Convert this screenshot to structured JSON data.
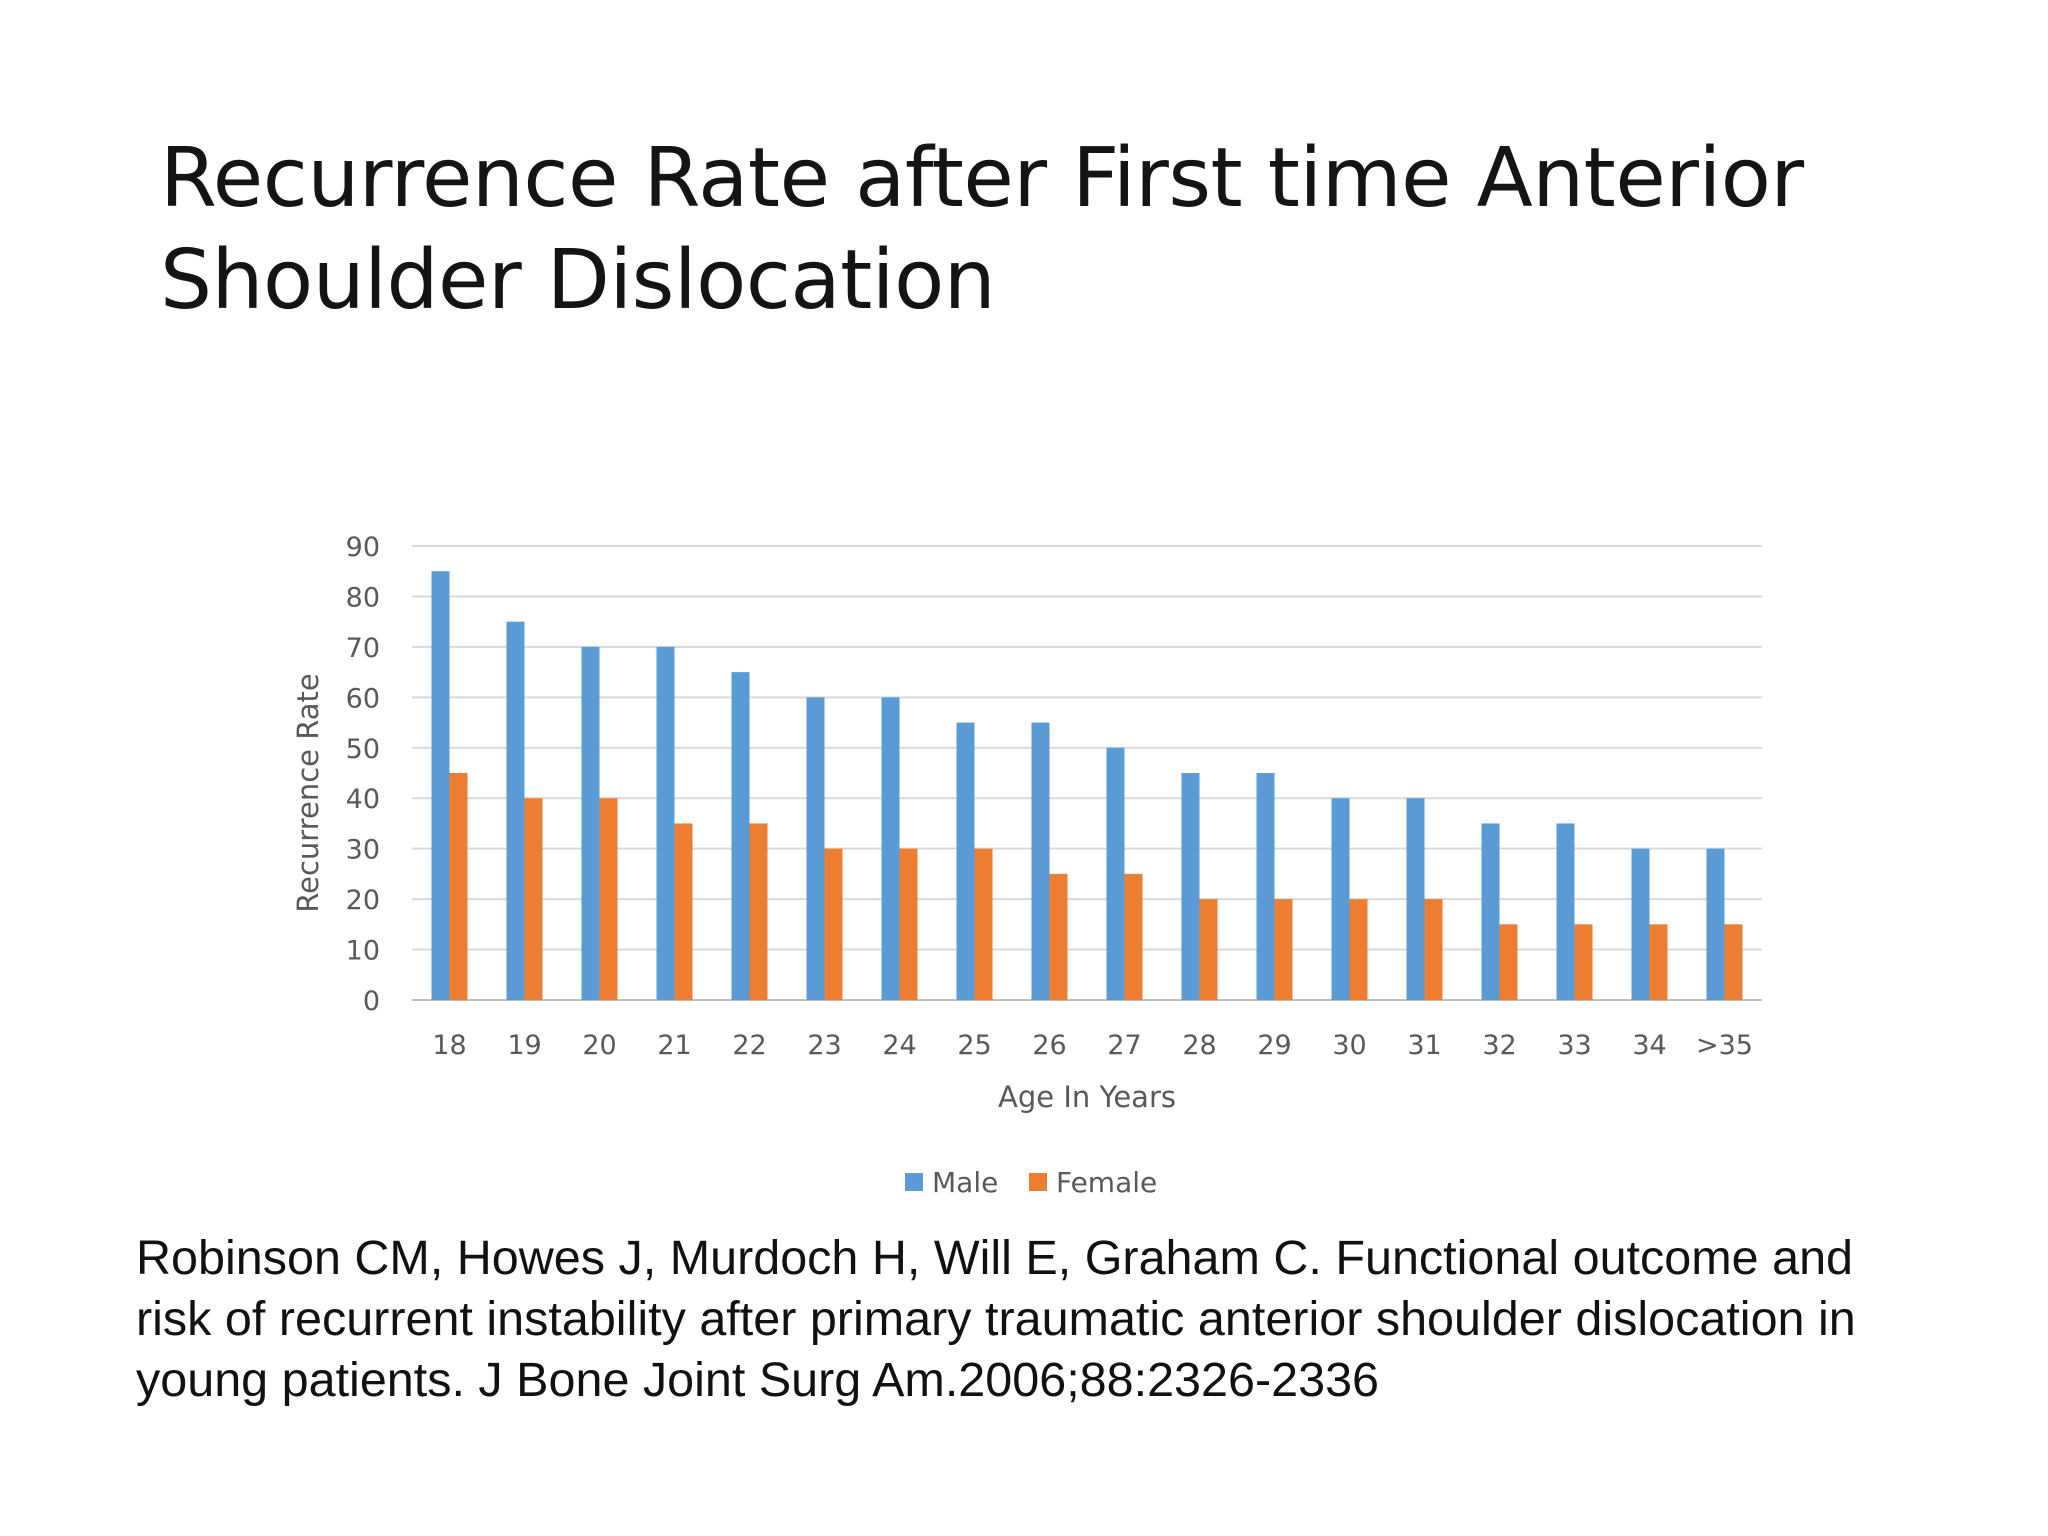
{
  "slide": {
    "title_lines": [
      "Recurrence Rate after First time Anterior",
      "Shoulder Dislocation"
    ],
    "citation_lines": [
      "Robinson CM, Howes J, Murdoch H, Will E, Graham C. Functional outcome and",
      "risk of recurrent instability after primary traumatic anterior shoulder dislocation in",
      "young patients. J Bone Joint Surg Am.2006;88:2326-2336"
    ]
  },
  "chart_data": {
    "type": "bar",
    "title": "",
    "xlabel": "Age In Years",
    "ylabel": "Recurrence Rate",
    "categories": [
      "18",
      "19",
      "20",
      "21",
      "22",
      "23",
      "24",
      "25",
      "26",
      "27",
      "28",
      "29",
      "30",
      "31",
      "32",
      "33",
      "34",
      ">35"
    ],
    "series": [
      {
        "name": "Male",
        "color": "#5b9bd5",
        "values": [
          85,
          75,
          70,
          70,
          65,
          60,
          60,
          55,
          55,
          50,
          45,
          45,
          40,
          40,
          35,
          35,
          30,
          30
        ]
      },
      {
        "name": "Female",
        "color": "#ed7d31",
        "values": [
          45,
          40,
          40,
          35,
          35,
          30,
          30,
          30,
          25,
          25,
          20,
          20,
          20,
          20,
          15,
          15,
          15,
          15
        ]
      }
    ],
    "ylim": [
      0,
      90
    ],
    "yticks": [
      0,
      10,
      20,
      30,
      40,
      50,
      60,
      70,
      80,
      90
    ],
    "grid": true,
    "legend": "bottom"
  }
}
